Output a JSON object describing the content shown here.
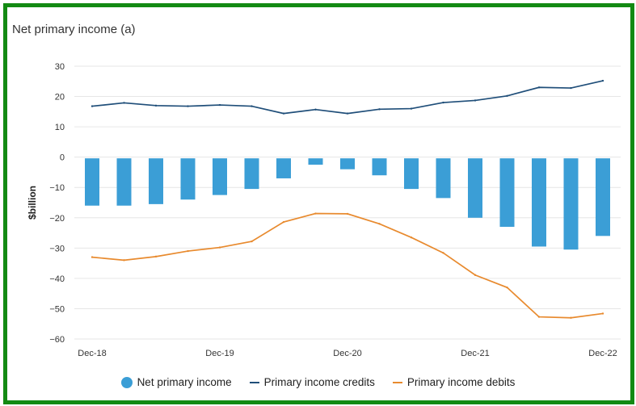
{
  "chart_data": {
    "type": "bar+line",
    "title": "Net primary income (a)",
    "ylabel": "$billion",
    "xlabel": "",
    "ylim": [
      -60,
      30
    ],
    "yticks": [
      30,
      20,
      10,
      0,
      -10,
      -20,
      -30,
      -40,
      -50,
      -60
    ],
    "ytick_labels": [
      "30",
      "20",
      "10",
      "0",
      "−10",
      "−20",
      "−30",
      "−40",
      "−50",
      "−60"
    ],
    "x_tick_labels": [
      "Dec-18",
      "Dec-19",
      "Dec-20",
      "Dec-21",
      "Dec-22"
    ],
    "x_tick_positions": [
      0,
      4,
      8,
      12,
      16
    ],
    "categories": [
      "Dec-18",
      "Mar-19",
      "Jun-19",
      "Sep-19",
      "Dec-19",
      "Mar-20",
      "Jun-20",
      "Sep-20",
      "Dec-20",
      "Mar-21",
      "Jun-21",
      "Sep-21",
      "Dec-21",
      "Mar-22",
      "Jun-22",
      "Sep-22",
      "Dec-22"
    ],
    "grid": true,
    "legend_position": "bottom",
    "series": [
      {
        "name": "Net primary income",
        "kind": "bar",
        "color": "#3b9ed6",
        "values": [
          -16,
          -16,
          -15.5,
          -14,
          -12.5,
          -10.5,
          -7,
          -2.5,
          -4,
          -6,
          -10.5,
          -13.5,
          -20,
          -23,
          -29.5,
          -30.5,
          -26
        ]
      },
      {
        "name": "Primary income credits",
        "kind": "line",
        "color": "#1f4e79",
        "values": [
          16.8,
          17.9,
          17.0,
          16.8,
          17.2,
          16.8,
          14.4,
          15.7,
          14.4,
          15.8,
          16.0,
          18.0,
          18.7,
          20.2,
          23.0,
          22.8,
          25.2
        ]
      },
      {
        "name": "Primary income debits",
        "kind": "line",
        "color": "#e88a2e",
        "values": [
          -33,
          -34,
          -32.8,
          -31,
          -29.8,
          -27.8,
          -21.4,
          -18.6,
          -18.7,
          -22,
          -26.5,
          -31.6,
          -38.9,
          -43,
          -52.7,
          -53,
          -51.6
        ]
      }
    ]
  }
}
